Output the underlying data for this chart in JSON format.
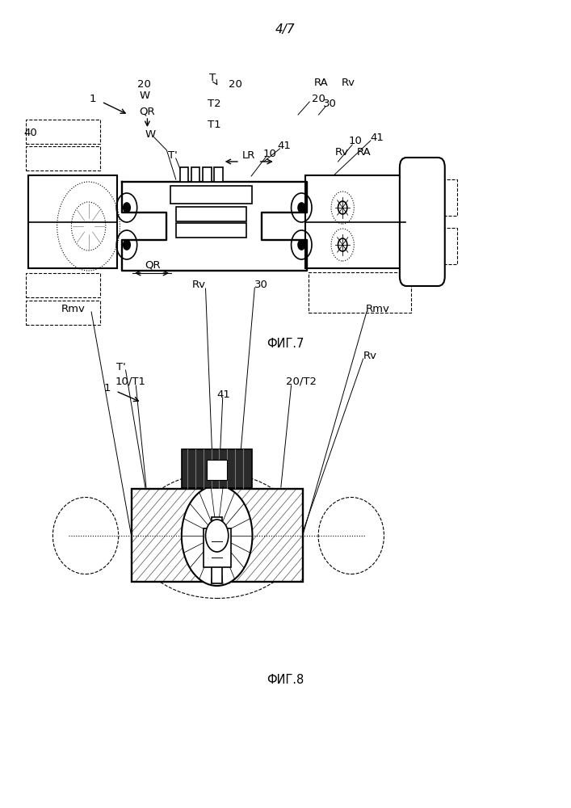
{
  "page_label": "4/7",
  "fig7_label": "ФИГ.7",
  "fig8_label": "ФИГ.8",
  "bg_color": "#ffffff",
  "line_color": "#000000"
}
